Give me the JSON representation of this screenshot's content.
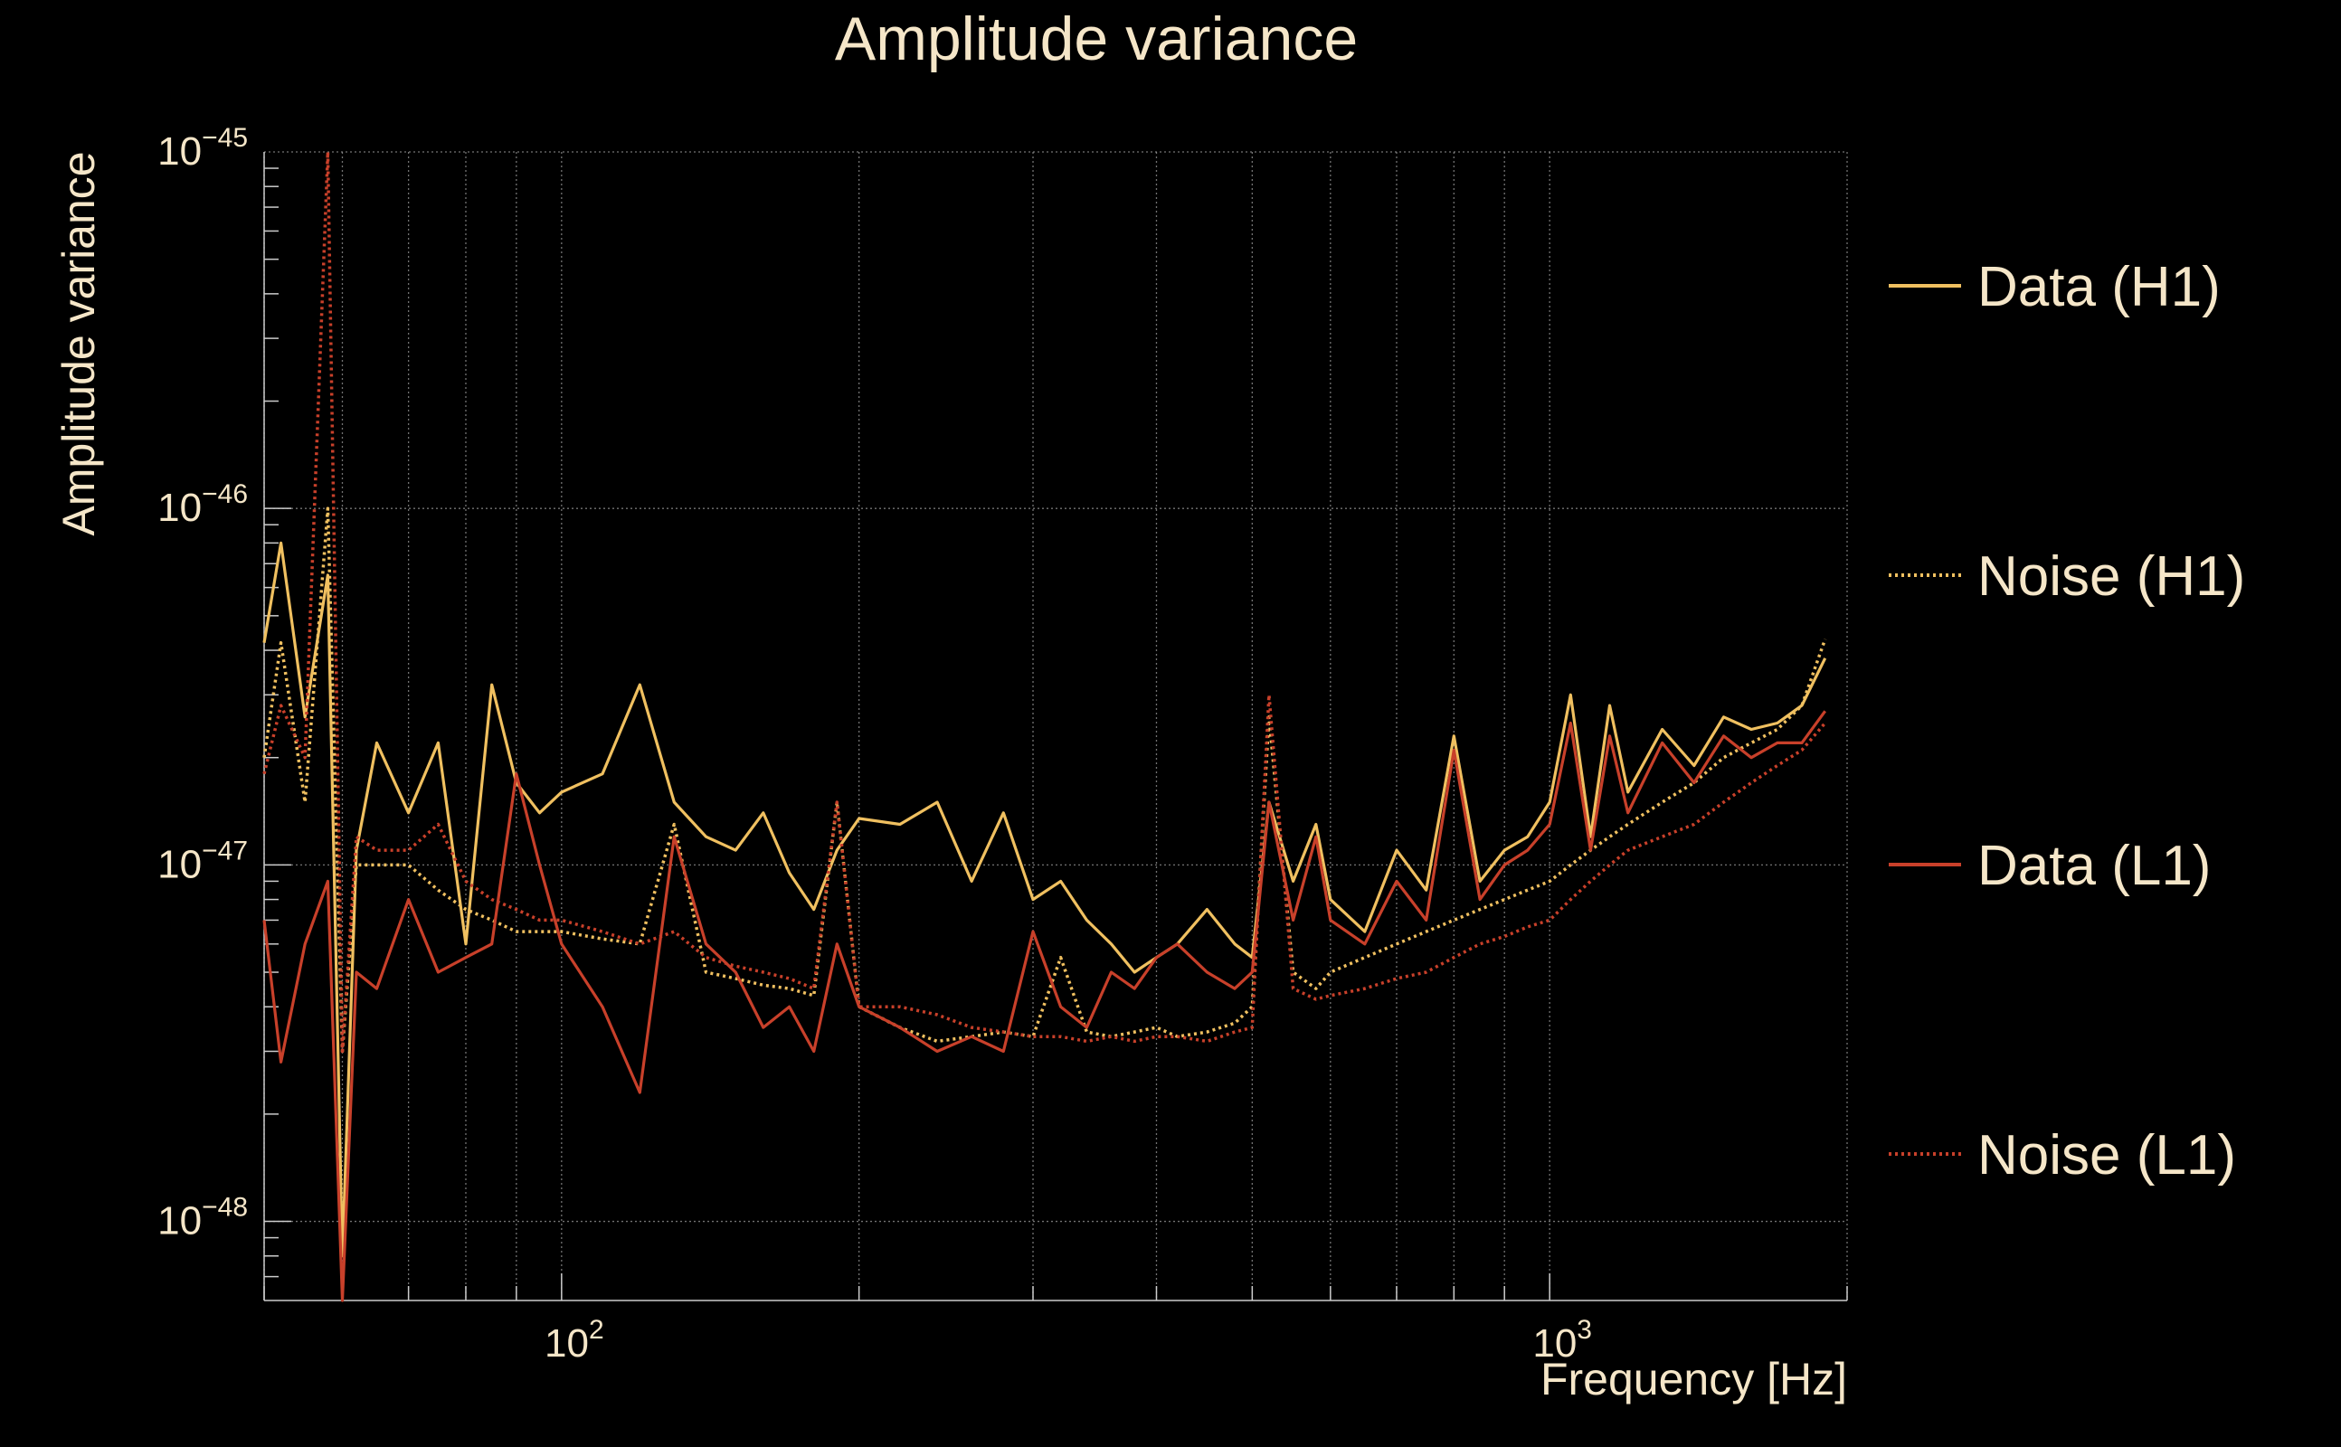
{
  "chart_data": {
    "type": "line",
    "title": "Amplitude variance",
    "xlabel": "Frequency [Hz]",
    "ylabel": "Amplitude variance",
    "xscale": "log",
    "yscale": "log",
    "xlim": [
      50,
      2000
    ],
    "ylim": [
      6e-49,
      1e-45
    ],
    "xticks": [
      {
        "value": 100,
        "base": "10",
        "exp": "2"
      },
      {
        "value": 1000,
        "base": "10",
        "exp": "3"
      }
    ],
    "yticks": [
      {
        "value": 1e-45,
        "base": "10",
        "exp": "−45"
      },
      {
        "value": 1e-46,
        "base": "10",
        "exp": "−46"
      },
      {
        "value": 1e-47,
        "base": "10",
        "exp": "−47"
      },
      {
        "value": 1e-48,
        "base": "10",
        "exp": "−48"
      }
    ],
    "grid": true,
    "legend_position": "right",
    "colors": {
      "h1": "#f0c060",
      "l1": "#c8402a",
      "text": "#f5e6c8",
      "grid": "#9a9a9a",
      "background": "#000000"
    },
    "x": [
      50,
      52,
      55,
      58,
      60,
      62,
      65,
      70,
      75,
      80,
      85,
      90,
      95,
      100,
      110,
      120,
      130,
      140,
      150,
      160,
      170,
      180,
      190,
      200,
      220,
      240,
      260,
      280,
      300,
      320,
      340,
      360,
      380,
      400,
      420,
      450,
      480,
      500,
      520,
      550,
      580,
      600,
      650,
      700,
      750,
      800,
      850,
      900,
      950,
      1000,
      1050,
      1100,
      1150,
      1200,
      1300,
      1400,
      1500,
      1600,
      1700,
      1800,
      1900
    ],
    "series": [
      {
        "name": "Data (H1)",
        "style": "solid",
        "color": "#f0c060",
        "values": [
          4.2e-47,
          8e-47,
          2.6e-47,
          6.5e-47,
          8e-49,
          1.1e-47,
          2.2e-47,
          1.4e-47,
          2.2e-47,
          6e-48,
          3.2e-47,
          1.7e-47,
          1.4e-47,
          1.6e-47,
          1.8e-47,
          3.2e-47,
          1.5e-47,
          1.2e-47,
          1.1e-47,
          1.4e-47,
          9.5e-48,
          7.5e-48,
          1.1e-47,
          1.35e-47,
          1.3e-47,
          1.5e-47,
          9e-48,
          1.4e-47,
          8e-48,
          9e-48,
          7e-48,
          6e-48,
          5e-48,
          5.5e-48,
          6e-48,
          7.5e-48,
          6e-48,
          5.5e-48,
          1.5e-47,
          9e-48,
          1.3e-47,
          8e-48,
          6.5e-48,
          1.1e-47,
          8.5e-48,
          2.3e-47,
          9e-48,
          1.1e-47,
          1.2e-47,
          1.5e-47,
          3e-47,
          1.2e-47,
          2.8e-47,
          1.6e-47,
          2.4e-47,
          1.9e-47,
          2.6e-47,
          2.4e-47,
          2.5e-47,
          2.8e-47,
          3.8e-47
        ]
      },
      {
        "name": "Noise (H1)",
        "style": "dotted",
        "color": "#f0c060",
        "values": [
          2e-47,
          4.2e-47,
          1.5e-47,
          1e-46,
          3e-48,
          1e-47,
          1e-47,
          1e-47,
          8.5e-48,
          7.5e-48,
          7e-48,
          6.5e-48,
          6.5e-48,
          6.5e-48,
          6.2e-48,
          6e-48,
          1.3e-47,
          5e-48,
          4.8e-48,
          4.6e-48,
          4.5e-48,
          4.3e-48,
          1.5e-47,
          4e-48,
          3.5e-48,
          3.2e-48,
          3.3e-48,
          3.4e-48,
          3.3e-48,
          5.5e-48,
          3.4e-48,
          3.3e-48,
          3.4e-48,
          3.5e-48,
          3.3e-48,
          3.4e-48,
          3.6e-48,
          4e-48,
          2.6e-47,
          5e-48,
          4.5e-48,
          5e-48,
          5.5e-48,
          6e-48,
          6.5e-48,
          7e-48,
          7.5e-48,
          8e-48,
          8.5e-48,
          9e-48,
          1e-47,
          1.1e-47,
          1.2e-47,
          1.3e-47,
          1.5e-47,
          1.7e-47,
          2e-47,
          2.2e-47,
          2.4e-47,
          2.8e-47,
          4.3e-47
        ]
      },
      {
        "name": "Data (L1)",
        "style": "solid",
        "color": "#c8402a",
        "values": [
          7e-48,
          2.8e-48,
          6e-48,
          9e-48,
          5e-49,
          5e-48,
          4.5e-48,
          8e-48,
          5e-48,
          5.5e-48,
          6e-48,
          1.8e-47,
          1e-47,
          6e-48,
          4e-48,
          2.3e-48,
          1.2e-47,
          6e-48,
          5e-48,
          3.5e-48,
          4e-48,
          3e-48,
          6e-48,
          4e-48,
          3.5e-48,
          3e-48,
          3.3e-48,
          3e-48,
          6.5e-48,
          4e-48,
          3.5e-48,
          5e-48,
          4.5e-48,
          5.5e-48,
          6e-48,
          5e-48,
          4.5e-48,
          5e-48,
          1.5e-47,
          7e-48,
          1.2e-47,
          7e-48,
          6e-48,
          9e-48,
          7e-48,
          2.1e-47,
          8e-48,
          1e-47,
          1.1e-47,
          1.3e-47,
          2.5e-47,
          1.1e-47,
          2.3e-47,
          1.4e-47,
          2.2e-47,
          1.7e-47,
          2.3e-47,
          2e-47,
          2.2e-47,
          2.2e-47,
          2.7e-47
        ]
      },
      {
        "name": "Noise (L1)",
        "style": "dotted",
        "color": "#c8402a",
        "values": [
          1.8e-47,
          2.8e-47,
          2e-47,
          1e-45,
          3e-48,
          1.2e-47,
          1.1e-47,
          1.1e-47,
          1.3e-47,
          9e-48,
          8e-48,
          7.5e-48,
          7e-48,
          7e-48,
          6.5e-48,
          6e-48,
          6.5e-48,
          5.5e-48,
          5.2e-48,
          5e-48,
          4.8e-48,
          4.5e-48,
          1.5e-47,
          4e-48,
          4e-48,
          3.8e-48,
          3.5e-48,
          3.4e-48,
          3.3e-48,
          3.3e-48,
          3.2e-48,
          3.3e-48,
          3.2e-48,
          3.3e-48,
          3.3e-48,
          3.2e-48,
          3.4e-48,
          3.5e-48,
          3e-47,
          4.5e-48,
          4.2e-48,
          4.3e-48,
          4.5e-48,
          4.8e-48,
          5e-48,
          5.5e-48,
          6e-48,
          6.3e-48,
          6.7e-48,
          7e-48,
          8e-48,
          9e-48,
          1e-47,
          1.1e-47,
          1.2e-47,
          1.3e-47,
          1.5e-47,
          1.7e-47,
          1.9e-47,
          2.1e-47,
          2.5e-47
        ]
      }
    ]
  }
}
